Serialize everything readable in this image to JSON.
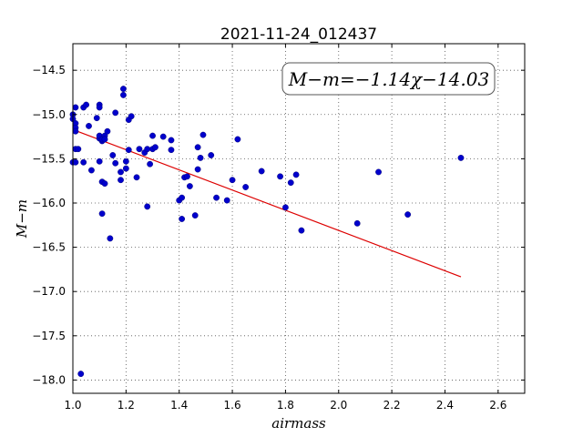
{
  "chart_data": {
    "type": "scatter",
    "title": "2021-11-24_012437",
    "xlabel": "airmass",
    "ylabel": "M−m",
    "annotation": "M−m=−1.14χ−14.03",
    "xlim": [
      1.0,
      2.7
    ],
    "ylim": [
      -18.15,
      -14.2
    ],
    "yinverted": true,
    "xticks": [
      1.0,
      1.2,
      1.4,
      1.6,
      1.8,
      2.0,
      2.2,
      2.4,
      2.6
    ],
    "xtick_labels": [
      "1.0",
      "1.2",
      "1.4",
      "1.6",
      "1.8",
      "2.0",
      "2.2",
      "2.4",
      "2.6"
    ],
    "yticks": [
      -14.5,
      -15.0,
      -15.5,
      -16.0,
      -16.5,
      -17.0,
      -17.5,
      -18.0
    ],
    "ytick_labels": [
      "−14.5",
      "−15.0",
      "−15.5",
      "−16.0",
      "−16.5",
      "−17.0",
      "−17.5",
      "−18.0"
    ],
    "grid": true,
    "point_color": "#0000cc",
    "line_color": "#dd0000",
    "fit": {
      "slope": -1.14,
      "intercept": -14.03,
      "x_range": [
        1.02,
        2.46
      ]
    },
    "x": [
      1.0,
      1.0,
      1.0,
      1.01,
      1.01,
      1.01,
      1.01,
      1.01,
      1.01,
      1.02,
      1.03,
      1.04,
      1.04,
      1.05,
      1.06,
      1.07,
      1.09,
      1.1,
      1.1,
      1.1,
      1.1,
      1.1,
      1.11,
      1.11,
      1.11,
      1.11,
      1.12,
      1.12,
      1.12,
      1.13,
      1.14,
      1.15,
      1.16,
      1.16,
      1.18,
      1.18,
      1.19,
      1.19,
      1.2,
      1.2,
      1.21,
      1.21,
      1.22,
      1.24,
      1.25,
      1.27,
      1.28,
      1.28,
      1.29,
      1.3,
      1.3,
      1.31,
      1.34,
      1.37,
      1.37,
      1.4,
      1.41,
      1.41,
      1.42,
      1.43,
      1.44,
      1.46,
      1.47,
      1.47,
      1.48,
      1.49,
      1.52,
      1.54,
      1.58,
      1.6,
      1.62,
      1.65,
      1.71,
      1.78,
      1.8,
      1.82,
      1.84,
      1.86,
      2.07,
      2.15,
      2.26,
      2.46
    ],
    "y": [
      -15.54,
      -15.0,
      -15.05,
      -14.92,
      -15.1,
      -15.15,
      -15.19,
      -15.39,
      -15.54,
      -15.39,
      -17.93,
      -15.54,
      -14.92,
      -14.89,
      -15.13,
      -15.63,
      -15.04,
      -15.27,
      -15.53,
      -14.89,
      -14.92,
      -15.24,
      -16.12,
      -15.3,
      -15.28,
      -15.76,
      -15.24,
      -15.78,
      -15.28,
      -15.19,
      -16.4,
      -15.46,
      -15.55,
      -14.98,
      -15.65,
      -15.74,
      -14.78,
      -14.71,
      -15.53,
      -15.61,
      -15.4,
      -15.06,
      -15.02,
      -15.71,
      -15.39,
      -15.43,
      -15.39,
      -16.04,
      -15.56,
      -15.24,
      -15.39,
      -15.37,
      -15.25,
      -15.4,
      -15.29,
      -15.97,
      -15.94,
      -16.18,
      -15.71,
      -15.7,
      -15.81,
      -16.14,
      -15.37,
      -15.62,
      -15.49,
      -15.23,
      -15.46,
      -15.94,
      -15.97,
      -15.74,
      -15.28,
      -15.82,
      -15.64,
      -15.7,
      -16.05,
      -15.77,
      -15.68,
      -16.31,
      -16.23,
      -15.65,
      -16.13,
      -15.49
    ]
  }
}
